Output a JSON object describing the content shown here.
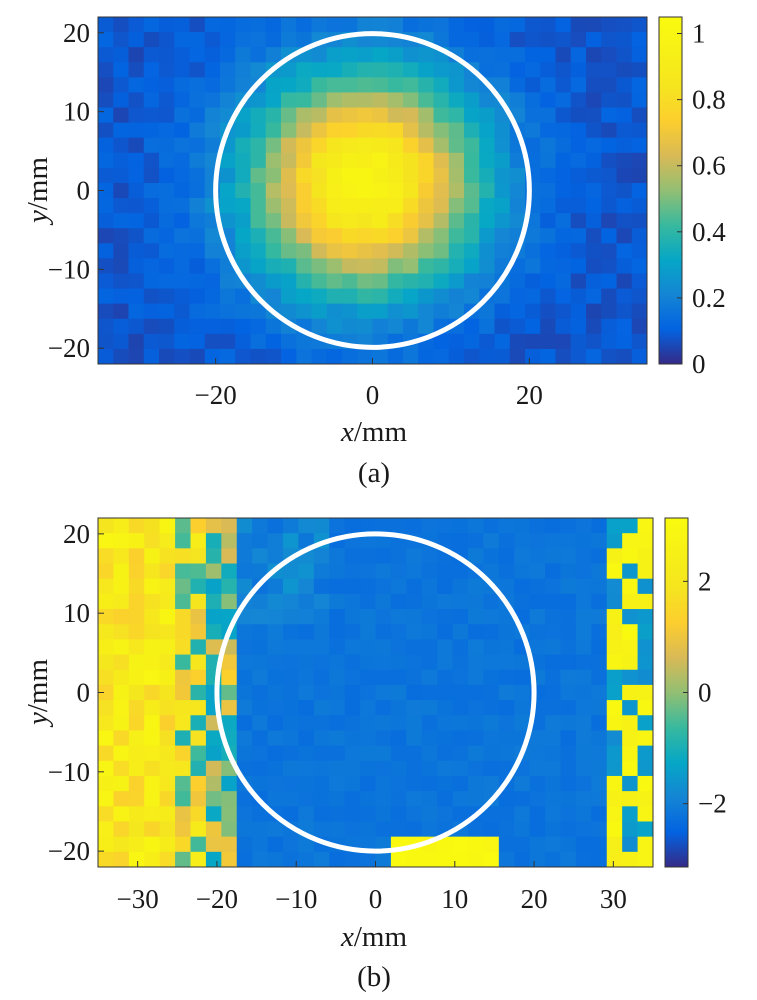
{
  "chart_data": [
    {
      "type": "heatmap",
      "panel_label": "(a)",
      "xlabel_var": "x",
      "ylabel_var": "y",
      "unit": "/mm",
      "xlim": [
        -35,
        35
      ],
      "ylim": [
        -22,
        22
      ],
      "x_ticks": [
        -20,
        0,
        20
      ],
      "y_ticks": [
        20,
        10,
        0,
        -10,
        -20
      ],
      "x_tick_labels": [
        "−20",
        "0",
        "20"
      ],
      "y_tick_labels": [
        "20",
        "10",
        "0",
        "−10",
        "−20"
      ],
      "colorbar": {
        "range": [
          0,
          1.05
        ],
        "ticks": [
          0,
          0.2,
          0.4,
          0.6,
          0.8,
          1
        ],
        "tick_labels": [
          "0",
          "0.2",
          "0.4",
          "0.6",
          "0.8",
          "1"
        ]
      },
      "colormap": "parula",
      "field": {
        "description": "normalized intensity, Gaussian-like spot",
        "center": [
          -1,
          1
        ],
        "peak": 1.0,
        "sigma_x_mm": 10,
        "sigma_y_mm": 9.5,
        "background": 0.08,
        "grid_nx": 36,
        "grid_ny": 23
      },
      "circle": {
        "center": [
          0,
          0
        ],
        "radius_mm": 20,
        "color": "#ffffff"
      }
    },
    {
      "type": "heatmap",
      "panel_label": "(b)",
      "xlabel_var": "x",
      "ylabel_var": "y",
      "unit": "/mm",
      "xlim": [
        -35,
        35
      ],
      "ylim": [
        -22,
        22
      ],
      "x_ticks": [
        -30,
        -20,
        -10,
        0,
        10,
        20,
        30
      ],
      "y_ticks": [
        20,
        10,
        0,
        -10,
        -20
      ],
      "x_tick_labels": [
        "−30",
        "−20",
        "−10",
        "0",
        "10",
        "20",
        "30"
      ],
      "y_tick_labels": [
        "20",
        "10",
        "0",
        "−10",
        "−20"
      ],
      "colorbar": {
        "range": [
          -3.14,
          3.14
        ],
        "ticks": [
          -2,
          0,
          2
        ],
        "tick_labels": [
          "−2",
          "0",
          "2"
        ]
      },
      "colormap": "parula",
      "field": {
        "description": "phase (rad), nearly flat inside circle with wrapping at left and right edges",
        "inner_value": -2.2,
        "left_band_value": 2.1,
        "right_edge_value": 3.0,
        "grid_nx": 36,
        "grid_ny": 23
      },
      "circle": {
        "center": [
          0,
          0
        ],
        "radius_mm": 20,
        "color": "#ffffff"
      }
    }
  ]
}
